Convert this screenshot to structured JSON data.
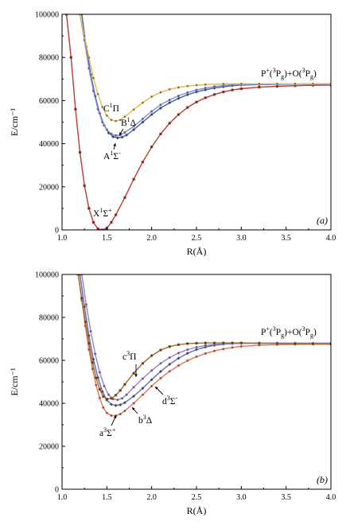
{
  "chart_data": [
    {
      "type": "line",
      "panel_label": "(a)",
      "xlabel": "R(Å)",
      "ylabel": "E/cm⁻¹",
      "xlim": [
        1.0,
        4.0
      ],
      "ylim": [
        0,
        100000
      ],
      "xticks": [
        "1.0",
        "1.5",
        "2.0",
        "2.5",
        "3.0",
        "3.5",
        "4.0"
      ],
      "yticks": [
        "0",
        "20000",
        "40000",
        "60000",
        "80000",
        "100000"
      ],
      "grid": false,
      "series": [
        {
          "name": "X¹Σ⁺",
          "color": "#c0392b",
          "marker": "square",
          "x": [
            1.05,
            1.1,
            1.15,
            1.2,
            1.25,
            1.3,
            1.35,
            1.4,
            1.45,
            1.5,
            1.55,
            1.6,
            1.7,
            1.8,
            1.9,
            2.0,
            2.1,
            2.2,
            2.3,
            2.4,
            2.5,
            2.6,
            2.7,
            2.8,
            2.9,
            3.0,
            3.2,
            3.4,
            3.6,
            3.8,
            4.0
          ],
          "y": [
            100000,
            80000,
            56000,
            36000,
            20500,
            10000,
            3500,
            500,
            0,
            800,
            3500,
            7000,
            15000,
            23500,
            31500,
            38500,
            44500,
            49500,
            53500,
            56800,
            59300,
            61300,
            62800,
            64000,
            64900,
            65500,
            66200,
            66600,
            66900,
            67100,
            67200
          ]
        },
        {
          "name": "A¹Σ⁻",
          "color": "#4a5aa8",
          "marker": "diamond",
          "x": [
            1.22,
            1.27,
            1.32,
            1.37,
            1.42,
            1.47,
            1.52,
            1.57,
            1.62,
            1.67,
            1.72,
            1.8,
            1.9,
            2.0,
            2.1,
            2.2,
            2.3,
            2.4,
            2.5,
            2.6,
            2.7,
            2.8,
            2.9,
            3.0,
            3.2,
            3.4,
            3.6,
            3.8,
            4.0
          ],
          "y": [
            100000,
            85000,
            72000,
            62000,
            54000,
            48500,
            45000,
            43200,
            42700,
            43000,
            44000,
            46500,
            50000,
            53500,
            56500,
            59000,
            61000,
            62700,
            64000,
            65000,
            65800,
            66400,
            66900,
            67200,
            67400,
            67500,
            67600,
            67600,
            67600
          ]
        },
        {
          "name": "B¹Δ",
          "color": "#7b8fd0",
          "marker": "circle",
          "x": [
            1.2,
            1.25,
            1.3,
            1.35,
            1.4,
            1.45,
            1.5,
            1.55,
            1.6,
            1.65,
            1.7,
            1.8,
            1.9,
            2.0,
            2.1,
            2.2,
            2.3,
            2.4,
            2.5,
            2.6,
            2.7,
            2.8,
            2.9,
            3.0,
            3.2,
            3.4,
            3.6,
            3.8,
            4.0
          ],
          "y": [
            100000,
            88000,
            75000,
            64500,
            56000,
            50000,
            46500,
            44500,
            43800,
            44000,
            45200,
            48000,
            51500,
            55000,
            58000,
            60300,
            62200,
            63700,
            64900,
            65800,
            66500,
            67000,
            67300,
            67500,
            67600,
            67600,
            67600,
            67600,
            67600
          ]
        },
        {
          "name": "C¹Π",
          "color": "#e6b84a",
          "marker": "circle",
          "x": [
            1.2,
            1.25,
            1.3,
            1.35,
            1.4,
            1.45,
            1.5,
            1.55,
            1.6,
            1.65,
            1.7,
            1.8,
            1.9,
            2.0,
            2.1,
            2.2,
            2.3,
            2.4,
            2.5,
            2.6,
            2.8,
            3.0,
            3.2,
            3.4,
            3.6,
            3.8,
            4.0
          ],
          "y": [
            100000,
            90000,
            80000,
            70500,
            63000,
            57000,
            53000,
            51000,
            50500,
            51000,
            52500,
            55800,
            59000,
            61800,
            63800,
            65200,
            66100,
            66700,
            67100,
            67400,
            67700,
            67800,
            67800,
            67800,
            67800,
            67800,
            67800
          ]
        }
      ],
      "annotations": [
        {
          "base": "C",
          "sup": "1",
          "tail": "Π"
        },
        {
          "base": "B",
          "sup": "1",
          "tail": "Δ"
        },
        {
          "base": "A",
          "sup": "1",
          "tail": "Σ",
          "sup2": "-"
        },
        {
          "base": "X",
          "sup": "1",
          "tail": "Σ",
          "sup2": "+"
        }
      ],
      "asymptote": {
        "p1": "P",
        "p1sup": "+",
        "p2": "(",
        "p2sup": "3",
        "p3": "P",
        "p3sub": "g",
        "p4": ")+O(",
        "p4sup": "3",
        "p5": "P",
        "p5sub": "g",
        "p6": ")"
      }
    },
    {
      "type": "line",
      "panel_label": "(b)",
      "xlabel": "R(Å)",
      "ylabel": "E/cm⁻¹",
      "xlim": [
        1.0,
        4.0
      ],
      "ylim": [
        0,
        100000
      ],
      "xticks": [
        "1.0",
        "1.5",
        "2.0",
        "2.5",
        "3.0",
        "3.5",
        "4.0"
      ],
      "yticks": [
        "0",
        "20000",
        "40000",
        "60000",
        "80000",
        "100000"
      ],
      "grid": false,
      "series": [
        {
          "name": "a³Σ⁺",
          "color": "#e57358",
          "marker": "circle",
          "x": [
            1.18,
            1.22,
            1.26,
            1.3,
            1.34,
            1.38,
            1.42,
            1.46,
            1.5,
            1.55,
            1.6,
            1.65,
            1.7,
            1.8,
            1.9,
            2.0,
            2.1,
            2.2,
            2.3,
            2.4,
            2.5,
            2.6,
            2.7,
            2.8,
            2.9,
            3.0,
            3.2,
            3.4,
            3.6,
            3.8,
            4.0
          ],
          "y": [
            100000,
            88000,
            76000,
            65000,
            56000,
            48500,
            42500,
            38000,
            35500,
            34300,
            34200,
            35000,
            36500,
            40000,
            44000,
            48000,
            51700,
            54900,
            57600,
            59900,
            61700,
            63200,
            64400,
            65300,
            66000,
            66500,
            67100,
            67300,
            67400,
            67500,
            67500
          ]
        },
        {
          "name": "b³Δ",
          "color": "#5a6bb5",
          "marker": "diamond",
          "x": [
            1.2,
            1.25,
            1.3,
            1.35,
            1.4,
            1.45,
            1.5,
            1.55,
            1.6,
            1.65,
            1.7,
            1.8,
            1.9,
            2.0,
            2.1,
            2.2,
            2.3,
            2.4,
            2.5,
            2.6,
            2.7,
            2.8,
            2.9,
            3.0,
            3.2,
            3.4,
            3.6,
            3.8,
            4.0
          ],
          "y": [
            100000,
            85000,
            71500,
            60500,
            52000,
            45500,
            41500,
            39500,
            39000,
            39300,
            40300,
            43300,
            47000,
            51000,
            54800,
            58200,
            61000,
            63300,
            65000,
            66200,
            67000,
            67500,
            67800,
            67900,
            68000,
            68000,
            68000,
            68000,
            68000
          ]
        },
        {
          "name": "d³Σ⁻",
          "color": "#9b7fc2",
          "marker": "circle",
          "x": [
            1.22,
            1.27,
            1.32,
            1.37,
            1.42,
            1.47,
            1.52,
            1.57,
            1.62,
            1.67,
            1.72,
            1.8,
            1.9,
            2.0,
            2.1,
            2.2,
            2.3,
            2.4,
            2.5,
            2.6,
            2.7,
            2.8,
            2.9,
            3.0,
            3.2,
            3.4,
            3.6,
            3.8,
            4.0
          ],
          "y": [
            100000,
            86000,
            73500,
            63000,
            54500,
            48000,
            44000,
            42000,
            41600,
            42300,
            44000,
            47500,
            51500,
            55300,
            58600,
            61300,
            63400,
            65000,
            66100,
            66900,
            67400,
            67700,
            67900,
            68000,
            68000,
            68000,
            68000,
            68000,
            68000
          ]
        },
        {
          "name": "c³Π",
          "color": "#a06a2a",
          "marker": "square",
          "x": [
            1.18,
            1.22,
            1.26,
            1.3,
            1.34,
            1.38,
            1.42,
            1.46,
            1.5,
            1.55,
            1.6,
            1.65,
            1.7,
            1.8,
            1.9,
            2.0,
            2.1,
            2.2,
            2.3,
            2.4,
            2.5,
            2.6,
            2.7,
            2.8,
            2.9,
            3.0,
            3.2,
            3.4,
            3.6,
            3.8,
            4.0
          ],
          "y": [
            100000,
            89000,
            78000,
            68000,
            59000,
            51800,
            46500,
            43200,
            42000,
            42300,
            43800,
            46000,
            48800,
            54000,
            58600,
            62200,
            64800,
            66400,
            67300,
            67800,
            68000,
            68100,
            68100,
            68100,
            68100,
            68100,
            68000,
            67900,
            67800,
            67700,
            67700
          ]
        }
      ],
      "annotations": [
        {
          "base": "c",
          "sup": "3",
          "tail": "Π"
        },
        {
          "base": "d",
          "sup": "3",
          "tail": "Σ",
          "sup2": "-"
        },
        {
          "base": "b",
          "sup": "3",
          "tail": "Δ"
        },
        {
          "base": "a",
          "sup": "3",
          "tail": "Σ",
          "sup2": "+"
        }
      ],
      "asymptote": {
        "p1": "P",
        "p1sup": "+",
        "p2": "(",
        "p2sup": "3",
        "p3": "P",
        "p3sub": "g",
        "p4": ")+O(",
        "p4sup": "3",
        "p5": "P",
        "p5sub": "g",
        "p6": ")"
      }
    }
  ]
}
